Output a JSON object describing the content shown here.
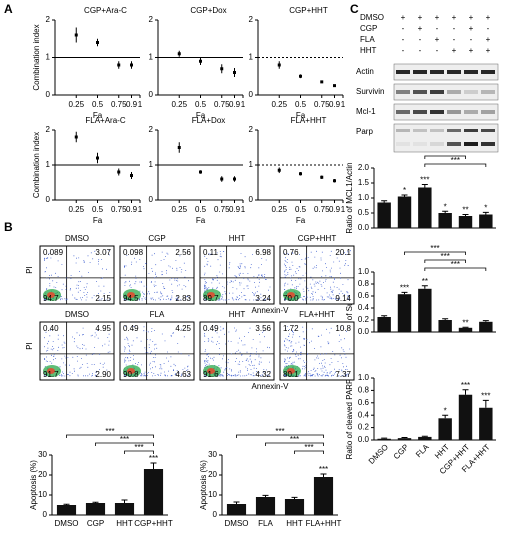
{
  "panels": [
    "A",
    "B",
    "C"
  ],
  "chart_data": [
    {
      "type": "scatter",
      "title": "CGP+Ara-C",
      "x": [
        0.25,
        0.5,
        0.75,
        0.9
      ],
      "values": [
        1.6,
        1.4,
        0.8,
        0.8
      ],
      "errors": [
        0.2,
        0.1,
        0.1,
        0.1
      ],
      "xlim": [
        0,
        1
      ],
      "ylim": [
        0,
        2
      ],
      "xticks": [
        0.25,
        0.5,
        0.75,
        0.9,
        1
      ],
      "yticks": [
        0,
        1,
        2
      ],
      "xlabel": "Fa",
      "ylabel": "Combination index",
      "reference": {
        "value": 1,
        "style": "solid"
      },
      "color": "#000000"
    },
    {
      "type": "scatter",
      "title": "CGP+Dox",
      "x": [
        0.25,
        0.5,
        0.75,
        0.9
      ],
      "values": [
        1.1,
        0.9,
        0.7,
        0.6
      ],
      "errors": [
        0.08,
        0.1,
        0.12,
        0.12
      ],
      "xlim": [
        0,
        1
      ],
      "ylim": [
        0,
        2
      ],
      "xticks": [
        0.25,
        0.5,
        0.75,
        0.9,
        1
      ],
      "yticks": [
        0,
        1,
        2
      ],
      "xlabel": "Fa",
      "reference": {
        "value": 1,
        "style": "solid"
      },
      "color": "#000000"
    },
    {
      "type": "scatter",
      "title": "CGP+HHT",
      "x": [
        0.25,
        0.5,
        0.75,
        0.9
      ],
      "values": [
        0.8,
        0.5,
        0.35,
        0.25
      ],
      "errors": [
        0.1,
        0.05,
        0.03,
        0.03
      ],
      "xlim": [
        0,
        1
      ],
      "ylim": [
        0,
        2
      ],
      "xticks": [
        0.25,
        0.5,
        0.75,
        0.9,
        1
      ],
      "yticks": [
        0,
        1,
        2
      ],
      "xlabel": "Fa",
      "reference": {
        "value": 1,
        "style": "dashed"
      },
      "color": "#000000"
    },
    {
      "type": "scatter",
      "title": "FLA+Ara-C",
      "x": [
        0.25,
        0.5,
        0.75,
        0.9
      ],
      "values": [
        1.8,
        1.2,
        0.8,
        0.7
      ],
      "errors": [
        0.15,
        0.15,
        0.1,
        0.1
      ],
      "xlim": [
        0,
        1
      ],
      "ylim": [
        0,
        2
      ],
      "xticks": [
        0.25,
        0.5,
        0.75,
        0.9,
        1
      ],
      "yticks": [
        0,
        1,
        2
      ],
      "xlabel": "Fa",
      "ylabel": "Combination index",
      "reference": {
        "value": 1,
        "style": "solid"
      },
      "color": "#000000"
    },
    {
      "type": "scatter",
      "title": "FLA+Dox",
      "x": [
        0.25,
        0.5,
        0.75,
        0.9
      ],
      "values": [
        1.5,
        0.8,
        0.6,
        0.6
      ],
      "errors": [
        0.15,
        0.05,
        0.08,
        0.08
      ],
      "xlim": [
        0,
        1
      ],
      "ylim": [
        0,
        2
      ],
      "xticks": [
        0.25,
        0.5,
        0.75,
        0.9,
        1
      ],
      "yticks": [
        0,
        1,
        2
      ],
      "xlabel": "Fa",
      "reference": {
        "value": 1,
        "style": "solid"
      },
      "color": "#000000"
    },
    {
      "type": "scatter",
      "title": "FLA+HHT",
      "x": [
        0.25,
        0.5,
        0.75,
        0.9
      ],
      "values": [
        0.85,
        0.75,
        0.65,
        0.55
      ],
      "errors": [
        0.08,
        0.05,
        0.05,
        0.05
      ],
      "xlim": [
        0,
        1
      ],
      "ylim": [
        0,
        2
      ],
      "xticks": [
        0.25,
        0.5,
        0.75,
        0.9,
        1
      ],
      "yticks": [
        0,
        1,
        2
      ],
      "xlabel": "Fa",
      "reference": {
        "value": 1,
        "style": "dashed"
      },
      "color": "#000000"
    },
    {
      "type": "bar",
      "categories": [
        "DMSO",
        "CGP",
        "HHT",
        "CGP+HHT"
      ],
      "values": [
        5,
        6,
        6,
        23
      ],
      "errors": [
        0.4,
        0.4,
        1.5,
        3
      ],
      "annotations": [
        null,
        null,
        null,
        "***"
      ],
      "brackets": [
        {
          "between": [
            "DMSO",
            "CGP+HHT"
          ],
          "label": "***"
        },
        {
          "between": [
            "CGP",
            "CGP+HHT"
          ],
          "label": "***"
        },
        {
          "between": [
            "HHT",
            "CGP+HHT"
          ],
          "label": "***"
        }
      ],
      "ylim": [
        0,
        30
      ],
      "yticks": [
        0,
        10,
        20,
        30
      ],
      "ylabel": "Apoptosis (%)",
      "color": "#111111"
    },
    {
      "type": "bar",
      "categories": [
        "DMSO",
        "FLA",
        "HHT",
        "FLA+HHT"
      ],
      "values": [
        5.5,
        9,
        8,
        19
      ],
      "errors": [
        1,
        0.8,
        0.8,
        1.5
      ],
      "annotations": [
        null,
        null,
        null,
        "***"
      ],
      "brackets": [
        {
          "between": [
            "DMSO",
            "FLA+HHT"
          ],
          "label": "***"
        },
        {
          "between": [
            "FLA",
            "FLA+HHT"
          ],
          "label": "***"
        },
        {
          "between": [
            "HHT",
            "FLA+HHT"
          ],
          "label": "***"
        }
      ],
      "ylim": [
        0,
        30
      ],
      "yticks": [
        0,
        10,
        20,
        30
      ],
      "ylabel": "Apoptosis (%)",
      "color": "#111111"
    },
    {
      "type": "bar",
      "categories": [
        "DMSO",
        "CGP",
        "FLA",
        "HHT",
        "CGP+HHT",
        "FLA+HHT"
      ],
      "values": [
        0.85,
        1.05,
        1.35,
        0.5,
        0.4,
        0.45
      ],
      "errors": [
        0.06,
        0.05,
        0.1,
        0.06,
        0.05,
        0.07
      ],
      "annotations": [
        null,
        "*",
        "***",
        "*",
        "**",
        "*"
      ],
      "brackets": [
        {
          "between": [
            "CGP",
            "CGP+HHT"
          ],
          "label": "***"
        },
        {
          "between": [
            "FLA",
            "CGP+HHT"
          ],
          "label": "***"
        },
        {
          "between": [
            "FLA",
            "FLA+HHT"
          ],
          "label": "***"
        }
      ],
      "ylim": [
        0,
        2
      ],
      "yticks": [
        {
          "value": 0,
          "label": "0.0"
        },
        {
          "value": 0.5,
          "label": "0.5"
        },
        {
          "value": 1,
          "label": "1.0"
        },
        {
          "value": 1.5,
          "label": "1.5"
        },
        {
          "value": 2,
          "label": "2.0"
        }
      ],
      "ylabel": "Ratio of MCL1/Actin",
      "color": "#111111"
    },
    {
      "type": "bar",
      "categories": [
        "DMSO",
        "CGP",
        "FLA",
        "HHT",
        "CGP+HHT",
        "FLA+HHT"
      ],
      "values": [
        0.25,
        0.63,
        0.72,
        0.2,
        0.07,
        0.17
      ],
      "errors": [
        0.02,
        0.03,
        0.05,
        0.02,
        0.01,
        0.02
      ],
      "annotations": [
        null,
        "***",
        "**",
        null,
        "**",
        null
      ],
      "brackets": [
        {
          "between": [
            "CGP",
            "CGP+HHT"
          ],
          "label": "***"
        },
        {
          "between": [
            "FLA",
            "CGP+HHT"
          ],
          "label": "***"
        },
        {
          "between": [
            "FLA",
            "FLA+HHT"
          ],
          "label": "***"
        }
      ],
      "ylim": [
        0,
        1
      ],
      "yticks": [
        {
          "value": 0,
          "label": "0.0"
        },
        0.2,
        0.4,
        0.6,
        0.8,
        {
          "value": 1,
          "label": "1.0"
        }
      ],
      "ylabel": "Ratio of Survivin/Actin",
      "color": "#111111"
    },
    {
      "type": "bar",
      "categories": [
        "DMSO",
        "CGP",
        "FLA",
        "HHT",
        "CGP+HHT",
        "FLA+HHT"
      ],
      "values": [
        0.02,
        0.03,
        0.05,
        0.35,
        0.73,
        0.52
      ],
      "errors": [
        0.01,
        0.01,
        0.01,
        0.05,
        0.08,
        0.12
      ],
      "annotations": [
        null,
        null,
        null,
        "*",
        "***",
        "***"
      ],
      "ylim": [
        0,
        1
      ],
      "yticks": [
        {
          "value": 0,
          "label": "0.0"
        },
        0.2,
        0.4,
        0.6,
        0.8,
        {
          "value": 1,
          "label": "1.0"
        }
      ],
      "ylabel": "Ratio of cleaved PARP/Actin",
      "color": "#111111"
    }
  ],
  "flow": {
    "xlabel": "Annexin-V",
    "ylabel": "PI",
    "rows": [
      {
        "panels": [
          {
            "title": "DMSO",
            "quadrants": [
              "0.089",
              "3.07",
              "94.7",
              "2.15"
            ]
          },
          {
            "title": "CGP",
            "quadrants": [
              "0.098",
              "2.56",
              "94.5",
              "2.83"
            ]
          },
          {
            "title": "HHT",
            "quadrants": [
              "0.11",
              "6.98",
              "89.7",
              "3.24"
            ]
          },
          {
            "title": "CGP+HHT",
            "quadrants": [
              "0.76",
              "20.1",
              "70.0",
              "9.14"
            ]
          }
        ]
      },
      {
        "panels": [
          {
            "title": "DMSO",
            "quadrants": [
              "0.40",
              "4.95",
              "91.7",
              "2.90"
            ]
          },
          {
            "title": "FLA",
            "quadrants": [
              "0.49",
              "4.25",
              "90.8",
              "4.63"
            ]
          },
          {
            "title": "HHT",
            "quadrants": [
              "0.49",
              "3.56",
              "91.6",
              "4.32"
            ]
          },
          {
            "title": "FLA+HHT",
            "quadrants": [
              "1.72",
              "10.8",
              "80.1",
              "7.37"
            ]
          }
        ]
      }
    ]
  },
  "blot": {
    "rows": [
      {
        "label": "DMSO",
        "signs": [
          "+",
          "+",
          "+",
          "+",
          "+",
          "+"
        ]
      },
      {
        "label": "CGP",
        "signs": [
          "-",
          "+",
          "-",
          "-",
          "+",
          "-"
        ]
      },
      {
        "label": "FLA",
        "signs": [
          "-",
          "-",
          "+",
          "-",
          "-",
          "+"
        ]
      },
      {
        "label": "HHT",
        "signs": [
          "-",
          "-",
          "-",
          "+",
          "+",
          "+"
        ]
      }
    ],
    "bands": [
      "Actin",
      "Survivin",
      "Mcl-1",
      "Parp"
    ]
  }
}
